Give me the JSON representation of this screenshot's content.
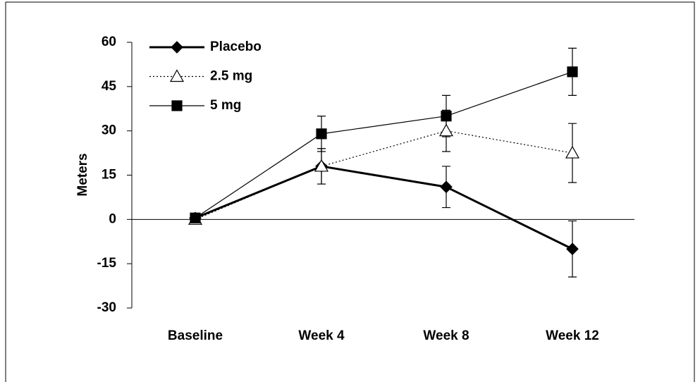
{
  "chart_data": {
    "type": "line",
    "y_label": "Meters",
    "categories": [
      "Baseline",
      "Week 4",
      "Week 8",
      "Week 12"
    ],
    "series": [
      {
        "name": "Placebo",
        "color": "#000000",
        "linestyle": "solid",
        "line_width": 3,
        "marker": "diamond",
        "marker_fill": "filled",
        "values": [
          0.5,
          18,
          11,
          -10
        ],
        "errors": [
          null,
          6,
          7,
          9.5
        ]
      },
      {
        "name": "2.5 mg",
        "color": "#000000",
        "linestyle": "dotted",
        "line_width": 1.2,
        "marker": "triangle",
        "marker_fill": "open",
        "values": [
          0,
          18,
          30,
          22.5
        ],
        "errors": [
          null,
          6,
          7,
          10
        ]
      },
      {
        "name": "5 mg",
        "color": "#000000",
        "linestyle": "solid",
        "line_width": 1.2,
        "marker": "square",
        "marker_fill": "filled",
        "values": [
          0.5,
          29,
          35,
          50
        ],
        "errors": [
          null,
          6,
          7,
          8
        ]
      }
    ],
    "ylim": [
      -30,
      60
    ],
    "yticks": [
      -30,
      -15,
      0,
      15,
      30,
      45,
      60
    ],
    "legend": "upper left"
  }
}
